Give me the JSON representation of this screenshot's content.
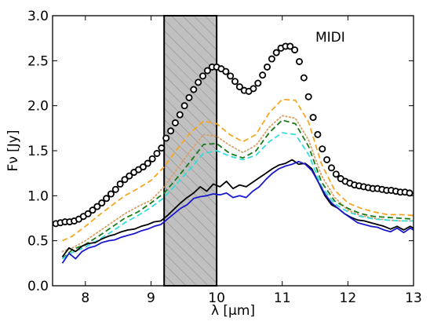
{
  "chart_data": {
    "type": "line",
    "xlabel": "λ [μm]",
    "ylabel": "Fν [Jy]",
    "xlim": [
      7.5,
      13.0
    ],
    "ylim": [
      0.0,
      3.0
    ],
    "xticks": [
      "8",
      "9",
      "10",
      "11",
      "12",
      "13"
    ],
    "yticks": [
      "0.0",
      "0.5",
      "1.0",
      "1.5",
      "2.0",
      "2.5",
      "3.0"
    ],
    "annotations": [
      {
        "text": "MIDI"
      }
    ],
    "shaded_band": {
      "x_start": 9.2,
      "x_end": 10.0,
      "fill": "#c0c0c0",
      "hatch": "diagonal"
    },
    "series": [
      {
        "style": "circles",
        "color": "#000000",
        "x": [
          7.55,
          7.62,
          7.69,
          7.76,
          7.83,
          7.9,
          7.97,
          8.04,
          8.11,
          8.18,
          8.25,
          8.32,
          8.39,
          8.46,
          8.53,
          8.6,
          8.67,
          8.74,
          8.81,
          8.88,
          8.95,
          9.02,
          9.09,
          9.16,
          9.23,
          9.3,
          9.37,
          9.44,
          9.51,
          9.58,
          9.65,
          9.72,
          9.79,
          9.86,
          9.93,
          10.0,
          10.07,
          10.14,
          10.21,
          10.28,
          10.35,
          10.42,
          10.49,
          10.56,
          10.63,
          10.7,
          10.77,
          10.84,
          10.91,
          10.98,
          11.05,
          11.12,
          11.19,
          11.26,
          11.33,
          11.4,
          11.47,
          11.54,
          11.61,
          11.68,
          11.75,
          11.82,
          11.89,
          11.96,
          12.03,
          12.1,
          12.17,
          12.24,
          12.31,
          12.38,
          12.45,
          12.52,
          12.59,
          12.66,
          12.73,
          12.8,
          12.87,
          12.94
        ],
        "y": [
          0.69,
          0.7,
          0.71,
          0.71,
          0.72,
          0.74,
          0.77,
          0.8,
          0.84,
          0.88,
          0.92,
          0.97,
          1.02,
          1.07,
          1.13,
          1.18,
          1.22,
          1.26,
          1.29,
          1.32,
          1.36,
          1.41,
          1.47,
          1.53,
          1.64,
          1.72,
          1.81,
          1.9,
          2.0,
          2.09,
          2.18,
          2.26,
          2.33,
          2.39,
          2.43,
          2.43,
          2.41,
          2.38,
          2.33,
          2.27,
          2.21,
          2.17,
          2.16,
          2.19,
          2.25,
          2.34,
          2.43,
          2.52,
          2.59,
          2.64,
          2.66,
          2.66,
          2.62,
          2.49,
          2.31,
          2.1,
          1.87,
          1.68,
          1.52,
          1.4,
          1.31,
          1.24,
          1.19,
          1.16,
          1.14,
          1.12,
          1.11,
          1.1,
          1.09,
          1.08,
          1.08,
          1.07,
          1.06,
          1.06,
          1.05,
          1.04,
          1.04,
          1.03
        ]
      },
      {
        "style": "dashed",
        "color": "#f5a623",
        "x": [
          7.65,
          7.8,
          8.0,
          8.2,
          8.4,
          8.6,
          8.8,
          9.0,
          9.2,
          9.4,
          9.6,
          9.8,
          10.0,
          10.2,
          10.4,
          10.6,
          10.8,
          11.0,
          11.2,
          11.4,
          11.6,
          11.8,
          12.0,
          12.2,
          12.4,
          12.6,
          12.8,
          13.0
        ],
        "y": [
          0.5,
          0.55,
          0.66,
          0.78,
          0.89,
          1.0,
          1.08,
          1.17,
          1.32,
          1.52,
          1.7,
          1.83,
          1.8,
          1.68,
          1.6,
          1.68,
          1.92,
          2.07,
          2.06,
          1.82,
          1.35,
          1.06,
          0.92,
          0.86,
          0.82,
          0.79,
          0.79,
          0.78
        ]
      },
      {
        "style": "dotted",
        "color": "#d9a066",
        "x": [
          7.65,
          7.8,
          8.0,
          8.2,
          8.4,
          8.6,
          8.8,
          9.0,
          9.2,
          9.4,
          9.6,
          9.8,
          10.0,
          10.2,
          10.4,
          10.6,
          10.8,
          11.0,
          11.2,
          11.4,
          11.6,
          11.8,
          12.0,
          12.2,
          12.4,
          12.6,
          12.8,
          13.0
        ],
        "y": [
          0.38,
          0.42,
          0.5,
          0.6,
          0.7,
          0.8,
          0.88,
          0.95,
          1.1,
          1.3,
          1.5,
          1.68,
          1.66,
          1.56,
          1.48,
          1.56,
          1.76,
          1.89,
          1.86,
          1.62,
          1.22,
          0.98,
          0.84,
          0.78,
          0.75,
          0.73,
          0.72,
          0.72
        ]
      },
      {
        "style": "dashed",
        "color": "#1a7a1a",
        "x": [
          7.65,
          7.8,
          8.0,
          8.2,
          8.4,
          8.6,
          8.8,
          9.0,
          9.2,
          9.4,
          9.6,
          9.8,
          10.0,
          10.2,
          10.4,
          10.6,
          10.8,
          11.0,
          11.2,
          11.4,
          11.6,
          11.8,
          12.0,
          12.2,
          12.4,
          12.6,
          12.8,
          13.0
        ],
        "y": [
          0.3,
          0.4,
          0.46,
          0.55,
          0.65,
          0.75,
          0.82,
          0.92,
          1.03,
          1.2,
          1.38,
          1.57,
          1.58,
          1.47,
          1.42,
          1.5,
          1.7,
          1.84,
          1.8,
          1.55,
          1.15,
          0.94,
          0.86,
          0.8,
          0.77,
          0.76,
          0.75,
          0.74
        ]
      },
      {
        "style": "dashed",
        "color": "#33dddd",
        "x": [
          7.65,
          7.8,
          8.0,
          8.2,
          8.4,
          8.6,
          8.8,
          9.0,
          9.2,
          9.4,
          9.6,
          9.8,
          10.0,
          10.2,
          10.4,
          10.6,
          10.8,
          11.0,
          11.2,
          11.4,
          11.6,
          11.8,
          12.0,
          12.2,
          12.4,
          12.6,
          12.8,
          13.0
        ],
        "y": [
          0.3,
          0.37,
          0.43,
          0.51,
          0.6,
          0.7,
          0.78,
          0.87,
          0.98,
          1.14,
          1.3,
          1.47,
          1.5,
          1.44,
          1.4,
          1.45,
          1.6,
          1.7,
          1.68,
          1.46,
          1.1,
          0.91,
          0.82,
          0.77,
          0.74,
          0.73,
          0.72,
          0.72
        ]
      },
      {
        "style": "solid",
        "color": "#000000",
        "x": [
          7.65,
          7.75,
          7.85,
          7.95,
          8.05,
          8.15,
          8.25,
          8.35,
          8.45,
          8.55,
          8.65,
          8.75,
          8.85,
          8.95,
          9.05,
          9.15,
          9.25,
          9.35,
          9.45,
          9.55,
          9.65,
          9.75,
          9.85,
          9.95,
          10.05,
          10.15,
          10.25,
          10.35,
          10.45,
          10.55,
          10.65,
          10.75,
          10.85,
          10.95,
          11.05,
          11.15,
          11.25,
          11.35,
          11.45,
          11.55,
          11.65,
          11.75,
          11.85,
          11.95,
          12.05,
          12.15,
          12.25,
          12.35,
          12.45,
          12.55,
          12.65,
          12.75,
          12.85,
          12.95,
          13.0
        ],
        "y": [
          0.32,
          0.42,
          0.38,
          0.44,
          0.47,
          0.48,
          0.52,
          0.55,
          0.57,
          0.6,
          0.62,
          0.63,
          0.66,
          0.68,
          0.71,
          0.72,
          0.78,
          0.85,
          0.92,
          0.98,
          1.03,
          1.1,
          1.05,
          1.13,
          1.1,
          1.16,
          1.08,
          1.12,
          1.1,
          1.15,
          1.2,
          1.25,
          1.3,
          1.34,
          1.36,
          1.4,
          1.35,
          1.36,
          1.3,
          1.15,
          1.0,
          0.9,
          0.86,
          0.8,
          0.76,
          0.73,
          0.72,
          0.7,
          0.68,
          0.66,
          0.63,
          0.66,
          0.62,
          0.66,
          0.64
        ]
      },
      {
        "style": "solid",
        "color": "#1a1acc",
        "x": [
          7.65,
          7.75,
          7.85,
          7.95,
          8.05,
          8.15,
          8.25,
          8.35,
          8.45,
          8.55,
          8.65,
          8.75,
          8.85,
          8.95,
          9.05,
          9.15,
          9.25,
          9.35,
          9.45,
          9.55,
          9.65,
          9.75,
          9.85,
          9.95,
          10.05,
          10.15,
          10.25,
          10.35,
          10.45,
          10.55,
          10.65,
          10.75,
          10.85,
          10.95,
          11.05,
          11.15,
          11.25,
          11.35,
          11.45,
          11.55,
          11.65,
          11.75,
          11.85,
          11.95,
          12.05,
          12.15,
          12.25,
          12.35,
          12.45,
          12.55,
          12.65,
          12.75,
          12.85,
          12.95,
          13.0
        ],
        "y": [
          0.25,
          0.36,
          0.3,
          0.38,
          0.42,
          0.44,
          0.48,
          0.5,
          0.51,
          0.54,
          0.56,
          0.58,
          0.61,
          0.63,
          0.66,
          0.68,
          0.74,
          0.8,
          0.86,
          0.9,
          0.97,
          0.99,
          1.0,
          1.02,
          1.01,
          1.03,
          0.98,
          1.0,
          0.98,
          1.05,
          1.1,
          1.18,
          1.25,
          1.3,
          1.33,
          1.35,
          1.38,
          1.35,
          1.28,
          1.15,
          1.02,
          0.92,
          0.86,
          0.8,
          0.75,
          0.7,
          0.68,
          0.66,
          0.65,
          0.62,
          0.6,
          0.64,
          0.59,
          0.64,
          0.62
        ]
      }
    ]
  }
}
